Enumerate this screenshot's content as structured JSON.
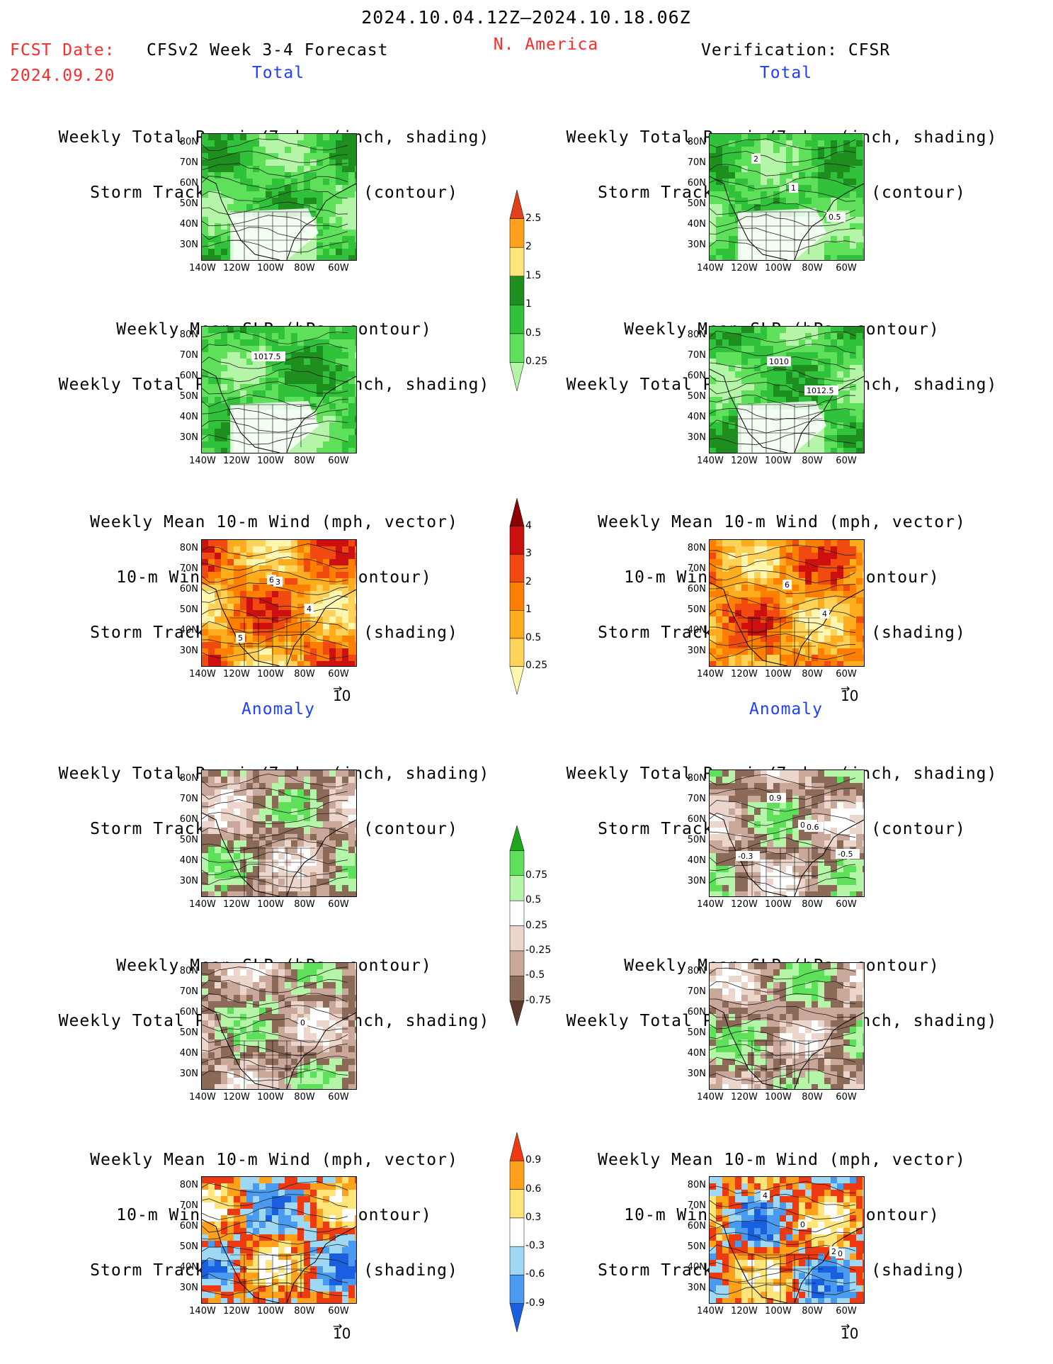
{
  "header": {
    "period": "2024.10.04.12Z–2024.10.18.06Z",
    "fcst_label": "FCST Date:",
    "fcst_date": "2024.09.20",
    "model": "CFSv2 Week 3-4 Forecast",
    "region": "N. America",
    "verification": "Verification: CFSR"
  },
  "sections": {
    "total_left": "Total",
    "total_right": "Total",
    "anomaly_left": "Anomaly",
    "anomaly_right": "Anomaly"
  },
  "titles": {
    "precip_storm": [
      "Weekly Total Precip/7-day (inch, shading)",
      "Storm Track Density/7-day (contour)"
    ],
    "slp_precip": [
      "Weekly Mean SLP (hPa, contour)",
      "Weekly Total Precip/7-day (inch, shading)"
    ],
    "wind_storm": [
      "Weekly Mean 10-m Wind (mph, vector)",
      "10-m Wind Speed (mph, contour)",
      "Storm Track Density/7-day (shading)"
    ]
  },
  "axes": {
    "lat_labels": [
      "80N",
      "70N",
      "60N",
      "50N",
      "40N",
      "30N"
    ],
    "lon_labels": [
      "140W",
      "120W",
      "100W",
      "80W",
      "60W"
    ]
  },
  "vector_ref": "10",
  "contour_labels": {
    "p1r": [
      "2",
      "1",
      "0.5"
    ],
    "p2l": [
      "1017.5"
    ],
    "p2r": [
      "1010",
      "1012.5"
    ],
    "p3l": [
      "6",
      "4",
      "5",
      "3"
    ],
    "p3r": [
      "6",
      "4"
    ],
    "p4r": [
      "0.6",
      "-0.5",
      "0.9",
      "0.6",
      "-0.3"
    ],
    "p5l": [
      "0"
    ],
    "p6r": [
      "2",
      "4",
      "0",
      "0"
    ]
  },
  "chart_data": [
    {
      "type": "heatmap",
      "name": "precip-total-colorbar",
      "colorbar_levels": [
        "0.25",
        "0.5",
        "1",
        "1.5",
        "2",
        "2.5"
      ],
      "colors": [
        "#b4f5a8",
        "#5fe05a",
        "#2fc23a",
        "#1e8f1e",
        "#ffe57a",
        "#ffa11a",
        "#e0401a"
      ]
    },
    {
      "type": "heatmap",
      "name": "storm-density-total-colorbar",
      "colorbar_levels": [
        "0.25",
        "0.5",
        "1",
        "2",
        "3",
        "4"
      ],
      "colors": [
        "#fff6b0",
        "#ffd25a",
        "#ffad1f",
        "#ff8000",
        "#f04a10",
        "#cc1010",
        "#8c0000"
      ]
    },
    {
      "type": "heatmap",
      "name": "precip-anomaly-colorbar",
      "colorbar_levels": [
        "-0.75",
        "-0.5",
        "-0.25",
        "0.25",
        "0.5",
        "0.75"
      ],
      "colors": [
        "#5a3a2a",
        "#8c6a58",
        "#c9a89a",
        "#ecd6cc",
        "#ffffff",
        "#b4f5a8",
        "#5fe05a",
        "#1ea61e"
      ]
    },
    {
      "type": "heatmap",
      "name": "storm-density-anomaly-colorbar",
      "colorbar_levels": [
        "-0.9",
        "-0.6",
        "-0.3",
        "0.3",
        "0.6",
        "0.9"
      ],
      "colors": [
        "#1a5fe0",
        "#4a9bf0",
        "#9fd8f5",
        "#ffffff",
        "#ffe57a",
        "#ffa11a",
        "#ee3a10"
      ]
    }
  ]
}
